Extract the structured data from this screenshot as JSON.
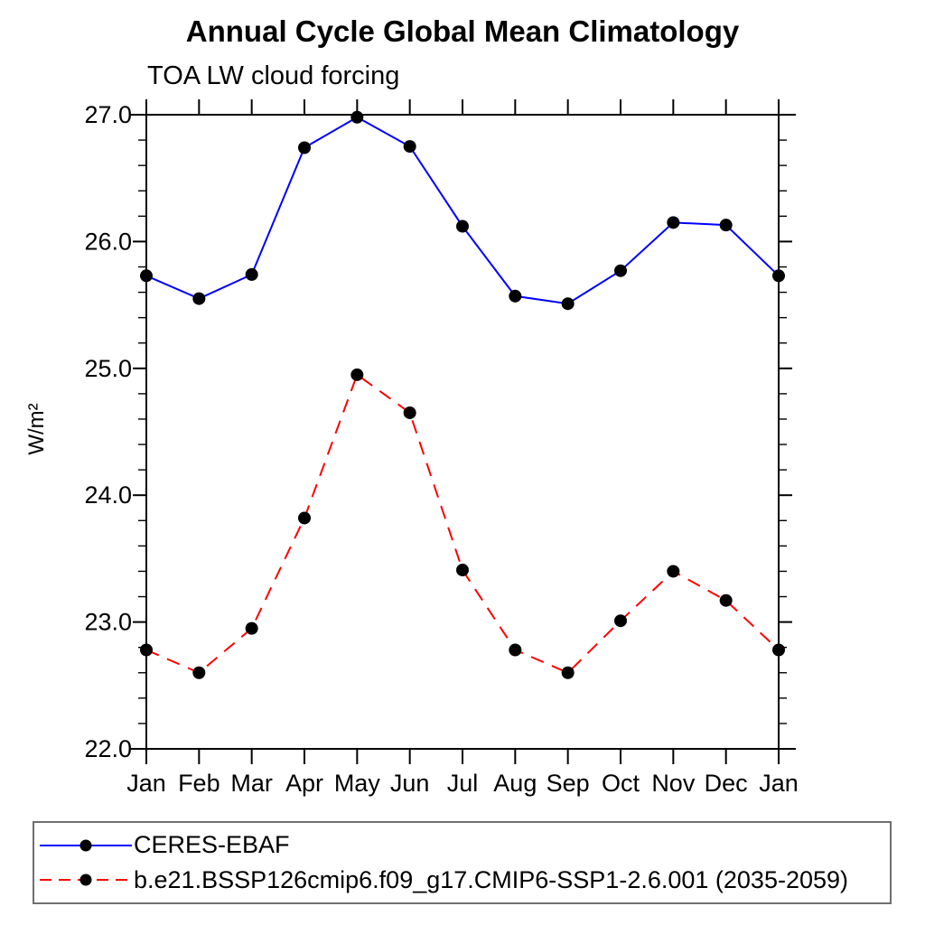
{
  "chart_data": {
    "type": "line",
    "title": "Annual Cycle Global Mean Climatology",
    "subtitle": "TOA LW cloud forcing",
    "ylabel": "W/m²",
    "xlabel": "",
    "x_categories": [
      "Jan",
      "Feb",
      "Mar",
      "Apr",
      "May",
      "Jun",
      "Jul",
      "Aug",
      "Sep",
      "Oct",
      "Nov",
      "Dec",
      "Jan"
    ],
    "ylim": [
      22.0,
      27.0
    ],
    "y_major_ticks": [
      22.0,
      23.0,
      24.0,
      25.0,
      26.0,
      27.0
    ],
    "y_tick_labels": [
      "22.0",
      "23.0",
      "24.0",
      "25.0",
      "26.0",
      "27.0"
    ],
    "y_minor_step": 0.2,
    "grid": false,
    "legend_position": "bottom-left-box",
    "axis_color": "#000000",
    "series": [
      {
        "id": "ceres-ebaf",
        "name": "CERES-EBAF",
        "color": "#0000ff",
        "style": "solid",
        "marker": "circle",
        "marker_color": "#000000",
        "values": [
          25.73,
          25.55,
          25.74,
          26.74,
          26.98,
          26.75,
          26.12,
          25.57,
          25.51,
          25.77,
          26.15,
          26.13,
          25.73
        ]
      },
      {
        "id": "cmip6-ssp126",
        "name": "b.e21.BSSP126cmip6.f09_g17.CMIP6-SSP1-2.6.001 (2035-2059)",
        "color": "#ff0000",
        "style": "dashed",
        "marker": "circle",
        "marker_color": "#000000",
        "values": [
          22.78,
          22.6,
          22.95,
          23.82,
          24.95,
          24.65,
          23.41,
          22.78,
          22.6,
          23.01,
          23.4,
          23.17,
          22.78
        ]
      }
    ]
  }
}
